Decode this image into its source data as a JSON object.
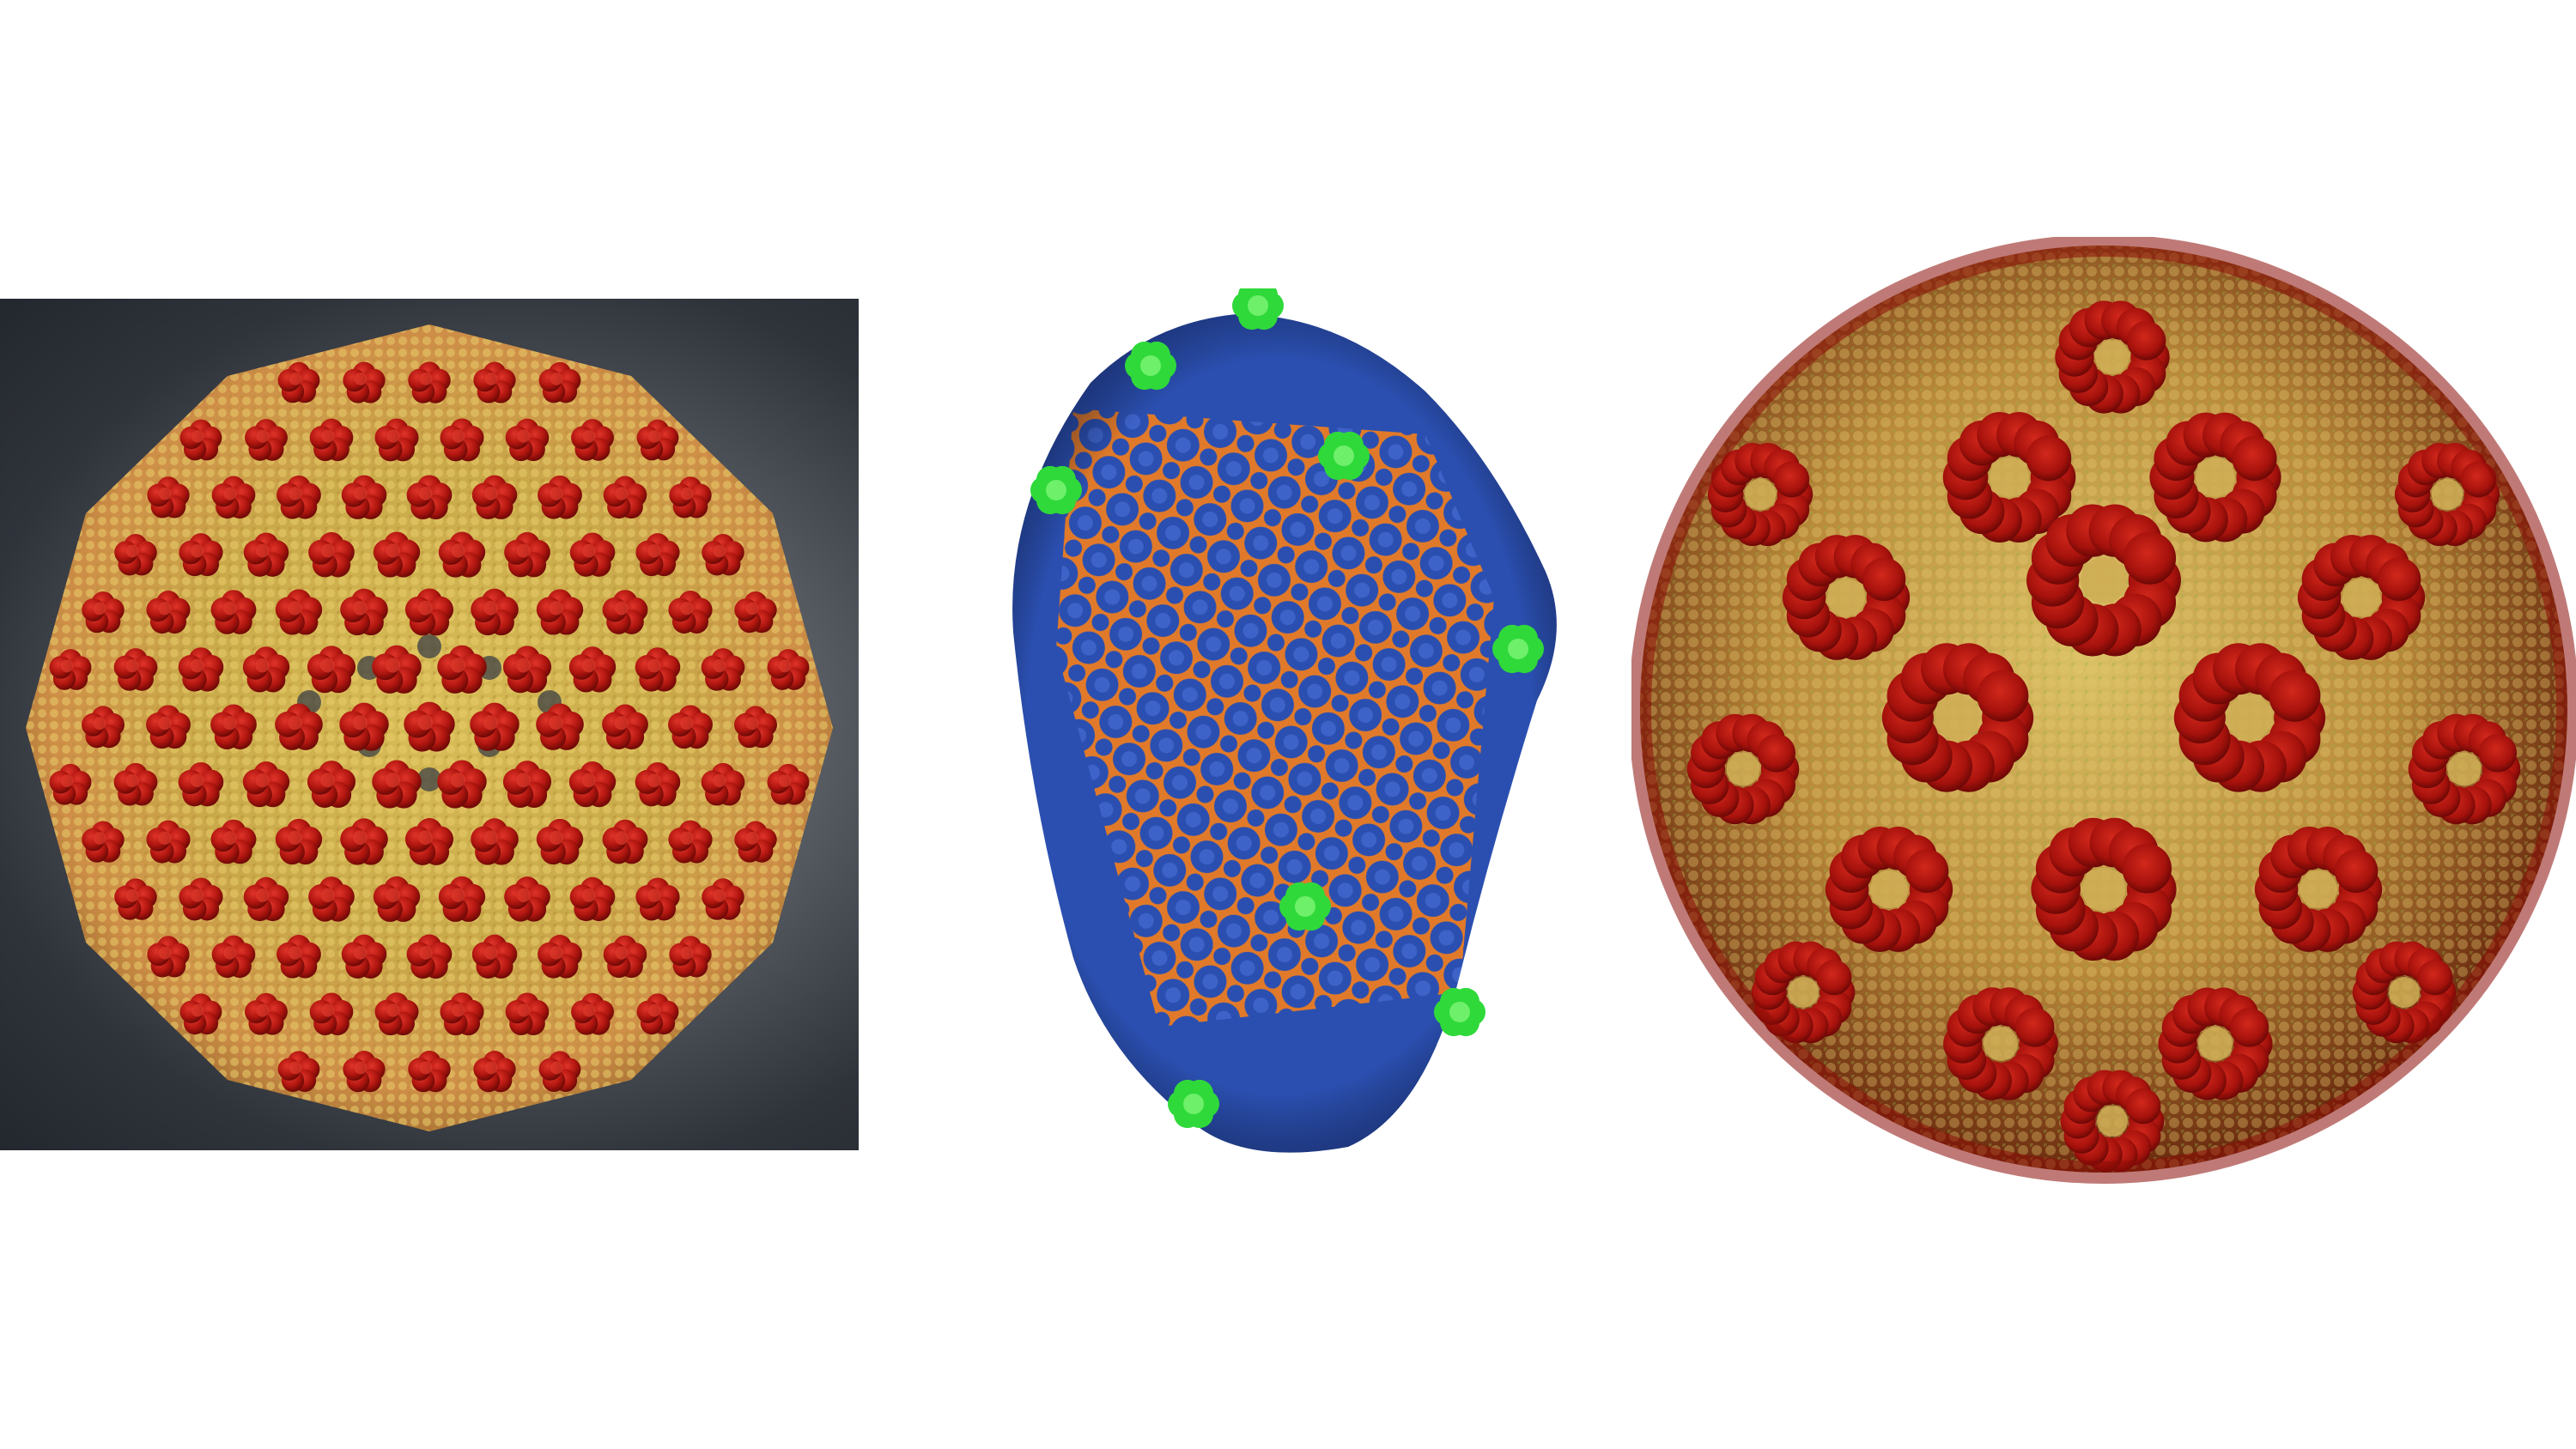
{
  "panels": [
    {
      "name": "left-capsid",
      "background": [
        "#2f333a",
        "#8c8f94"
      ],
      "colors": {
        "shell": "#c9b24a",
        "shell_light": "#e8cf6a",
        "shell_edge": "#d98a46",
        "spike": "#a81410",
        "spike_light": "#d8251c"
      }
    },
    {
      "name": "middle-capsid",
      "background": [
        "#ffffff"
      ],
      "colors": {
        "body": "#2b4fb0",
        "body_dark": "#1c358a",
        "lattice": "#e07a2a",
        "vertex": "#2fd93a"
      }
    },
    {
      "name": "right-capsid",
      "background": [
        "#ffffff"
      ],
      "colors": {
        "shell": "#c8a24a",
        "shell_green": "#9fb84a",
        "capsomer": "#b3140e",
        "capsomer_light": "#e0542e",
        "edge": "#8a0c08"
      }
    }
  ]
}
